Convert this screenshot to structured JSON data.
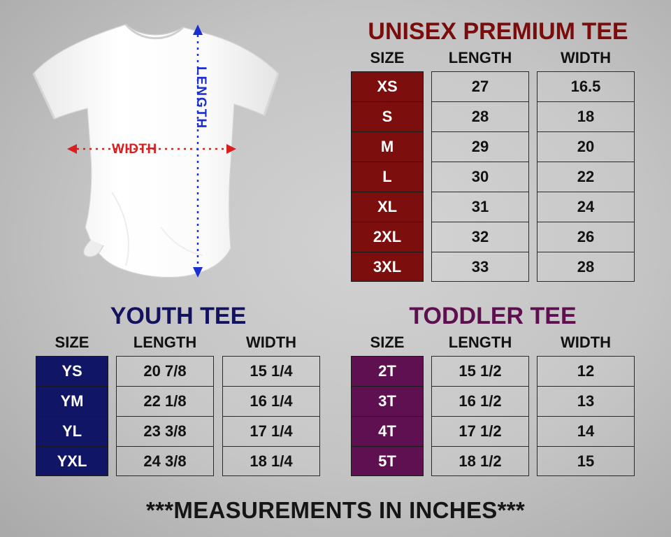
{
  "tee_graphic": {
    "width_label": "WIDTH",
    "length_label": "LENGTH",
    "width_arrow_color": "#d81e1e",
    "length_arrow_color": "#1b2fcf"
  },
  "unisex": {
    "title": "UNISEX PREMIUM TEE",
    "headers": [
      "SIZE",
      "LENGTH",
      "WIDTH"
    ],
    "rows": [
      [
        "XS",
        "27",
        "16.5"
      ],
      [
        "S",
        "28",
        "18"
      ],
      [
        "M",
        "29",
        "20"
      ],
      [
        "L",
        "30",
        "22"
      ],
      [
        "XL",
        "31",
        "24"
      ],
      [
        "2XL",
        "32",
        "26"
      ],
      [
        "3XL",
        "33",
        "28"
      ]
    ],
    "accent": "#7c0e0e"
  },
  "youth": {
    "title": "YOUTH TEE",
    "headers": [
      "SIZE",
      "LENGTH",
      "WIDTH"
    ],
    "rows": [
      [
        "YS",
        "20 7/8",
        "15 1/4"
      ],
      [
        "YM",
        "22 1/8",
        "16 1/4"
      ],
      [
        "YL",
        "23 3/8",
        "17 1/4"
      ],
      [
        "YXL",
        "24 3/8",
        "18 1/4"
      ]
    ],
    "accent": "#111566"
  },
  "toddler": {
    "title": "TODDLER TEE",
    "headers": [
      "SIZE",
      "LENGTH",
      "WIDTH"
    ],
    "rows": [
      [
        "2T",
        "15 1/2",
        "12"
      ],
      [
        "3T",
        "16 1/2",
        "13"
      ],
      [
        "4T",
        "17 1/2",
        "14"
      ],
      [
        "5T",
        "18 1/2",
        "15"
      ]
    ],
    "accent": "#5e1050"
  },
  "footer": "***MEASUREMENTS IN INCHES***"
}
